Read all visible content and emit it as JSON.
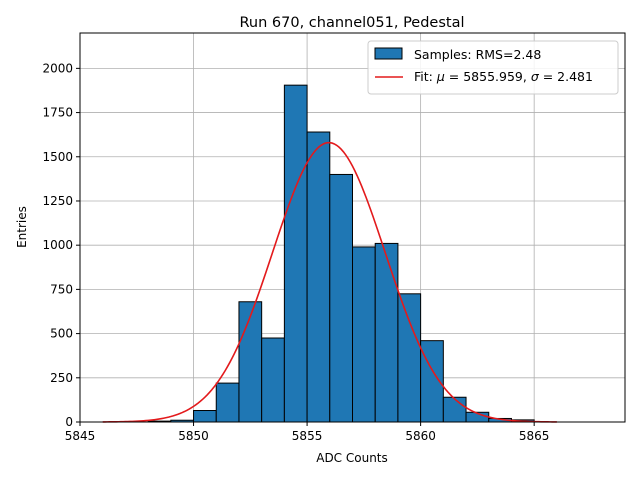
{
  "chart_data": {
    "type": "bar",
    "title": "Run 670, channel051, Pedestal",
    "xlabel": "ADC Counts",
    "ylabel": "Entries",
    "xlim": [
      5845,
      5869
    ],
    "ylim": [
      0,
      2200
    ],
    "xticks": [
      5845,
      5850,
      5855,
      5860,
      5865
    ],
    "yticks": [
      0,
      250,
      500,
      750,
      1000,
      1250,
      1500,
      1750,
      2000
    ],
    "grid": true,
    "legend_position": "top-right",
    "histogram": {
      "name": "Samples: RMS=2.48",
      "color": "#1f77b4",
      "bin_edges": [
        5848,
        5849,
        5850,
        5851,
        5852,
        5853,
        5854,
        5855,
        5856,
        5857,
        5858,
        5859,
        5860,
        5861,
        5862,
        5863,
        5864,
        5865
      ],
      "counts": [
        5,
        10,
        65,
        220,
        680,
        475,
        1905,
        1640,
        1400,
        990,
        1010,
        725,
        460,
        140,
        55,
        20,
        12
      ]
    },
    "fit": {
      "name": "Fit: μ = 5855.959, σ = 2.481",
      "name_prefix": "Fit: ",
      "mu_symbol": "μ",
      "mu_text": " = 5855.959, ",
      "sigma_symbol": "σ",
      "sigma_text": " = 2.481",
      "color": "#e31a1c",
      "mu": 5855.959,
      "sigma": 2.481,
      "amplitude": 1580,
      "x_range": [
        5846,
        5866
      ]
    }
  }
}
